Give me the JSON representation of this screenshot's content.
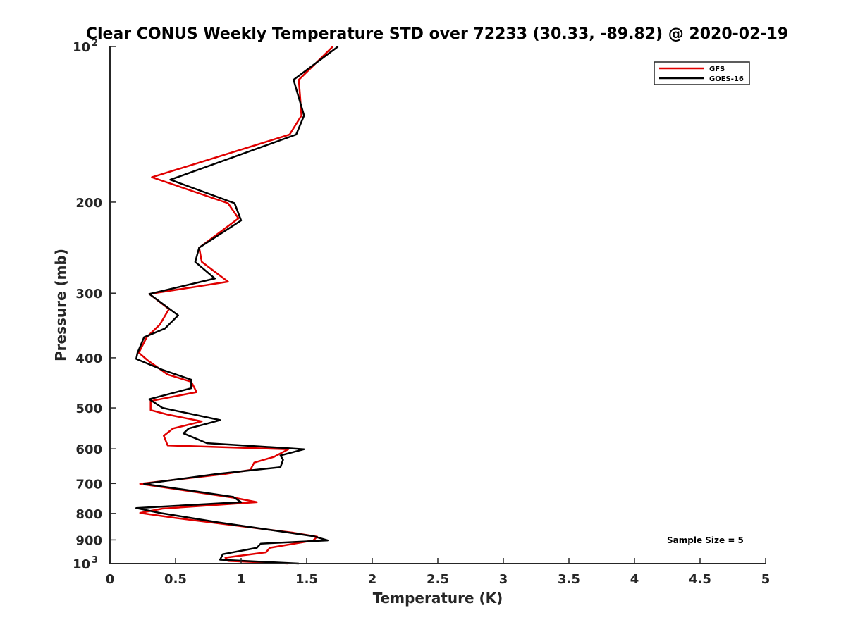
{
  "chart_data": {
    "type": "line",
    "title": "Clear CONUS Weekly Temperature STD over 72233 (30.33, -89.82) @ 2020-02-19",
    "xlabel": "Temperature (K)",
    "ylabel": "Pressure (mb)",
    "xlim": [
      0,
      5
    ],
    "ylim": [
      100,
      1000
    ],
    "yscale": "log",
    "y_reversed": true,
    "grid": false,
    "legend_position": "top-right",
    "x_ticks": [
      0,
      0.5,
      1,
      1.5,
      2,
      2.5,
      3,
      3.5,
      4,
      4.5,
      5
    ],
    "x_tick_labels": [
      "0",
      "0.5",
      "1",
      "1.5",
      "2",
      "2.5",
      "3",
      "3.5",
      "4",
      "4.5",
      "5"
    ],
    "y_ticks": [
      100,
      200,
      300,
      400,
      500,
      600,
      700,
      800,
      900,
      1000
    ],
    "y_tick_labels": [
      {
        "base": "10",
        "exp": "2"
      },
      {
        "base": "200",
        "exp": ""
      },
      {
        "base": "300",
        "exp": ""
      },
      {
        "base": "400",
        "exp": ""
      },
      {
        "base": "500",
        "exp": ""
      },
      {
        "base": "600",
        "exp": ""
      },
      {
        "base": "700",
        "exp": ""
      },
      {
        "base": "800",
        "exp": ""
      },
      {
        "base": "900",
        "exp": ""
      },
      {
        "base": "10",
        "exp": "3"
      }
    ],
    "annotation": "Sample Size = 5",
    "series": [
      {
        "name": "GFS",
        "color": "#e00000",
        "points": [
          [
            1.7,
            100
          ],
          [
            1.44,
            116
          ],
          [
            1.45,
            125
          ],
          [
            1.46,
            136
          ],
          [
            1.37,
            148
          ],
          [
            0.32,
            179
          ],
          [
            0.9,
            201
          ],
          [
            0.98,
            215
          ],
          [
            0.68,
            245
          ],
          [
            0.7,
            261
          ],
          [
            0.9,
            285
          ],
          [
            0.3,
            301
          ],
          [
            0.45,
            322
          ],
          [
            0.38,
            345
          ],
          [
            0.28,
            365
          ],
          [
            0.22,
            391
          ],
          [
            0.29,
            405
          ],
          [
            0.44,
            431
          ],
          [
            0.62,
            445
          ],
          [
            0.66,
            466
          ],
          [
            0.31,
            485
          ],
          [
            0.31,
            505
          ],
          [
            0.44,
            515
          ],
          [
            0.7,
            531
          ],
          [
            0.48,
            548
          ],
          [
            0.41,
            566
          ],
          [
            0.44,
            591
          ],
          [
            1.36,
            601
          ],
          [
            1.25,
            622
          ],
          [
            1.1,
            638
          ],
          [
            1.07,
            659
          ],
          [
            0.88,
            671
          ],
          [
            0.23,
            701
          ],
          [
            0.96,
            747
          ],
          [
            1.12,
            761
          ],
          [
            0.4,
            783
          ],
          [
            0.23,
            798
          ],
          [
            0.5,
            816
          ],
          [
            1.4,
            872
          ],
          [
            1.58,
            887
          ],
          [
            1.55,
            902
          ],
          [
            1.22,
            932
          ],
          [
            1.19,
            951
          ],
          [
            0.88,
            974
          ],
          [
            0.9,
            988
          ],
          [
            1.36,
            1000
          ]
        ]
      },
      {
        "name": "GOES-16",
        "color": "#000000",
        "points": [
          [
            1.74,
            100
          ],
          [
            1.4,
            116
          ],
          [
            1.48,
            136
          ],
          [
            1.42,
            148
          ],
          [
            0.46,
            181
          ],
          [
            0.95,
            201
          ],
          [
            1.0,
            217
          ],
          [
            0.68,
            245
          ],
          [
            0.65,
            261
          ],
          [
            0.8,
            281
          ],
          [
            0.3,
            301
          ],
          [
            0.52,
            331
          ],
          [
            0.42,
            351
          ],
          [
            0.26,
            365
          ],
          [
            0.21,
            391
          ],
          [
            0.2,
            402
          ],
          [
            0.4,
            422
          ],
          [
            0.62,
            441
          ],
          [
            0.62,
            458
          ],
          [
            0.3,
            481
          ],
          [
            0.4,
            500
          ],
          [
            0.84,
            528
          ],
          [
            0.6,
            548
          ],
          [
            0.56,
            560
          ],
          [
            0.74,
            585
          ],
          [
            1.48,
            601
          ],
          [
            1.3,
            618
          ],
          [
            1.32,
            630
          ],
          [
            1.3,
            651
          ],
          [
            0.82,
            671
          ],
          [
            0.26,
            701
          ],
          [
            0.94,
            743
          ],
          [
            1.0,
            761
          ],
          [
            0.2,
            781
          ],
          [
            0.38,
            798
          ],
          [
            0.82,
            832
          ],
          [
            1.55,
            885
          ],
          [
            1.66,
            902
          ],
          [
            1.15,
            915
          ],
          [
            1.12,
            932
          ],
          [
            0.86,
            959
          ],
          [
            0.84,
            983
          ],
          [
            1.44,
            1000
          ]
        ]
      }
    ]
  }
}
